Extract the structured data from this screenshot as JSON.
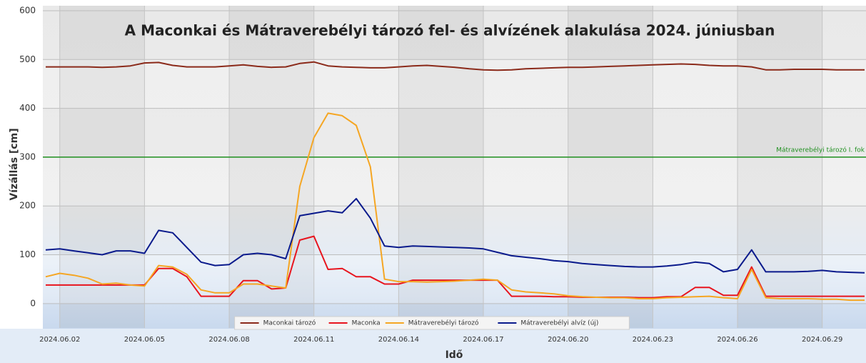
{
  "chart_data": {
    "type": "line",
    "title": "A Maconkai és Mátraverebélyi tározó fel- és alvízének alakulása 2024. júniusban",
    "x_label": "Idő",
    "y_label": "Vízállás [cm]",
    "x": [
      1.5,
      2,
      2.5,
      3,
      3.5,
      4,
      4.5,
      5,
      5.5,
      6,
      6.5,
      7,
      7.5,
      8,
      8.5,
      9,
      9.5,
      10,
      10.5,
      11,
      11.5,
      12,
      12.5,
      13,
      13.5,
      14,
      14.5,
      15,
      15.5,
      16,
      16.5,
      17,
      17.5,
      18,
      18.5,
      19,
      19.5,
      20,
      20.5,
      21,
      21.5,
      22,
      22.5,
      23,
      23.5,
      24,
      24.5,
      25,
      25.5,
      26,
      26.5,
      27,
      27.5,
      28,
      28.5,
      29,
      29.5,
      30,
      30.5
    ],
    "series": [
      {
        "name": "Maconkai tározó",
        "color": "#8b2a1a",
        "values": [
          485,
          485,
          485,
          485,
          484,
          485,
          487,
          493,
          494,
          488,
          485,
          485,
          485,
          487,
          489,
          486,
          484,
          485,
          492,
          495,
          487,
          485,
          484,
          483,
          483,
          485,
          487,
          488,
          486,
          484,
          481,
          479,
          478,
          479,
          481,
          482,
          483,
          484,
          484,
          485,
          486,
          487,
          488,
          489,
          490,
          491,
          490,
          488,
          487,
          487,
          485,
          479,
          479,
          480,
          480,
          480,
          479,
          479,
          479
        ]
      },
      {
        "name": "Maconka",
        "color": "#e8141e",
        "values": [
          38,
          38,
          38,
          38,
          38,
          38,
          38,
          38,
          72,
          72,
          55,
          15,
          15,
          15,
          47,
          47,
          30,
          32,
          130,
          138,
          70,
          72,
          55,
          55,
          40,
          40,
          48,
          48,
          48,
          48,
          48,
          48,
          48,
          15,
          15,
          15,
          14,
          14,
          13,
          13,
          13,
          13,
          12,
          12,
          14,
          14,
          33,
          33,
          17,
          17,
          75,
          15,
          15,
          15,
          15,
          15,
          15,
          15,
          15
        ]
      },
      {
        "name": "Mátraverebélyi tározó",
        "color": "#f5a623",
        "values": [
          55,
          62,
          58,
          52,
          40,
          42,
          38,
          36,
          78,
          75,
          60,
          28,
          22,
          22,
          40,
          40,
          36,
          32,
          240,
          340,
          390,
          385,
          365,
          280,
          50,
          45,
          45,
          44,
          45,
          46,
          48,
          50,
          48,
          28,
          24,
          22,
          20,
          16,
          14,
          13,
          12,
          12,
          10,
          10,
          12,
          13,
          14,
          15,
          12,
          10,
          70,
          12,
          10,
          10,
          10,
          9,
          9,
          7,
          7
        ]
      },
      {
        "name": "Mátraverebélyi alvíz (új)",
        "color": "#0a1a8c",
        "values": [
          110,
          112,
          108,
          104,
          100,
          108,
          108,
          103,
          150,
          145,
          115,
          85,
          78,
          80,
          100,
          103,
          100,
          92,
          180,
          185,
          190,
          186,
          215,
          175,
          118,
          115,
          118,
          117,
          116,
          115,
          114,
          112,
          105,
          98,
          95,
          92,
          88,
          86,
          82,
          80,
          78,
          76,
          75,
          75,
          77,
          80,
          85,
          82,
          65,
          70,
          110,
          65,
          65,
          65,
          66,
          68,
          65,
          64,
          63
        ]
      }
    ],
    "xlim": [
      1.4,
      30.55
    ],
    "xticks": [
      {
        "value": 2,
        "label": "2024.06.02"
      },
      {
        "value": 5,
        "label": "2024.06.05"
      },
      {
        "value": 8,
        "label": "2024.06.08"
      },
      {
        "value": 11,
        "label": "2024.06.11"
      },
      {
        "value": 14,
        "label": "2024.06.14"
      },
      {
        "value": 17,
        "label": "2024.06.17"
      },
      {
        "value": 20,
        "label": "2024.06.20"
      },
      {
        "value": 23,
        "label": "2024.06.23"
      },
      {
        "value": 26,
        "label": "2024.06.26"
      },
      {
        "value": 29,
        "label": "2024.06.29"
      }
    ],
    "ylim": [
      -50,
      600
    ],
    "yticks": [
      0,
      100,
      200,
      300,
      400,
      500,
      600
    ],
    "grid": true,
    "legend": "bottom",
    "reference_lines": [
      {
        "value": 300,
        "label": "Mátraverebélyi tározó I. fok",
        "color": "#1f8f1f"
      }
    ]
  }
}
